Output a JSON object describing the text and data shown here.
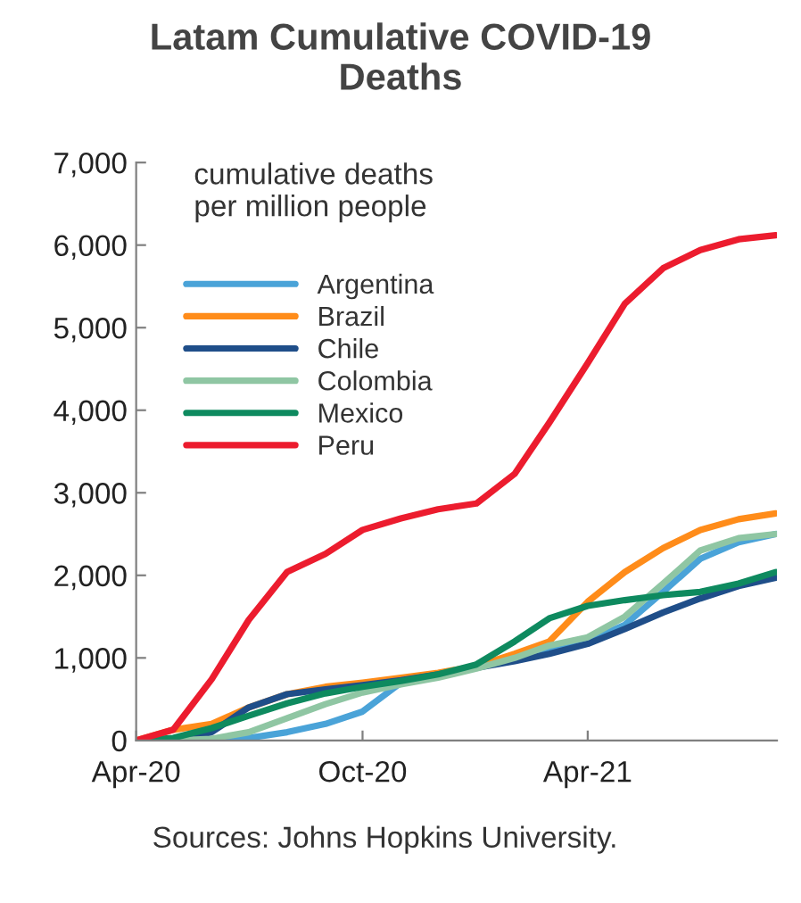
{
  "chart_data": {
    "type": "line",
    "title": "Latam Cumulative COVID-19\nDeaths",
    "ylabel": "cumulative deaths\nper million people",
    "annotations": [
      "Sources: Johns Hopkins University."
    ],
    "x": [
      "2020-04-01",
      "2020-05-01",
      "2020-06-01",
      "2020-07-01",
      "2020-08-01",
      "2020-09-01",
      "2020-10-01",
      "2020-11-01",
      "2020-12-01",
      "2021-01-01",
      "2021-02-01",
      "2021-03-01",
      "2021-04-01",
      "2021-05-01",
      "2021-06-01",
      "2021-07-01",
      "2021-08-01",
      "2021-08-31"
    ],
    "series": [
      {
        "name": "Argentina",
        "color": "#4aa3d8",
        "values": [
          0,
          0,
          0,
          30,
          100,
          200,
          350,
          700,
          800,
          880,
          1000,
          1100,
          1200,
          1400,
          1800,
          2200,
          2400,
          2500
        ]
      },
      {
        "name": "Brazil",
        "color": "#ff8c1a",
        "values": [
          0,
          130,
          200,
          400,
          560,
          650,
          700,
          760,
          820,
          900,
          1050,
          1200,
          1680,
          2040,
          2330,
          2550,
          2680,
          2750
        ]
      },
      {
        "name": "Chile",
        "color": "#1f4e89",
        "values": [
          0,
          10,
          100,
          400,
          560,
          620,
          670,
          730,
          800,
          880,
          960,
          1050,
          1170,
          1350,
          1550,
          1720,
          1870,
          1970
        ]
      },
      {
        "name": "Colombia",
        "color": "#8fc6a3",
        "values": [
          0,
          0,
          20,
          100,
          270,
          440,
          580,
          680,
          760,
          870,
          1000,
          1150,
          1250,
          1500,
          1900,
          2300,
          2450,
          2500
        ]
      },
      {
        "name": "Mexico",
        "color": "#0e8a5f",
        "values": [
          0,
          30,
          150,
          300,
          450,
          570,
          650,
          720,
          800,
          920,
          1200,
          1480,
          1630,
          1700,
          1760,
          1800,
          1900,
          2040
        ]
      },
      {
        "name": "Peru",
        "color": "#ec1c2e",
        "values": [
          0,
          130,
          740,
          1460,
          2040,
          2260,
          2550,
          2690,
          2800,
          2870,
          3230,
          3850,
          4570,
          5290,
          5720,
          5940,
          6070,
          6120
        ]
      }
    ],
    "xlim": [
      "2020-04-01",
      "2021-09-01"
    ],
    "xticks": [
      {
        "value": "2020-04-01",
        "label": "Apr-20"
      },
      {
        "value": "2020-10-01",
        "label": "Oct-20"
      },
      {
        "value": "2021-04-01",
        "label": "Apr-21"
      }
    ],
    "ylim": [
      0,
      7000
    ],
    "yticks": [
      {
        "value": 0,
        "label": "0"
      },
      {
        "value": 1000,
        "label": "1,000"
      },
      {
        "value": 2000,
        "label": "2,000"
      },
      {
        "value": 3000,
        "label": "3,000"
      },
      {
        "value": 4000,
        "label": "4,000"
      },
      {
        "value": 5000,
        "label": "5,000"
      },
      {
        "value": 6000,
        "label": "6,000"
      },
      {
        "value": 7000,
        "label": "7,000"
      }
    ],
    "grid": false,
    "legend": "top left",
    "marker": "none",
    "line_style": "solid"
  }
}
